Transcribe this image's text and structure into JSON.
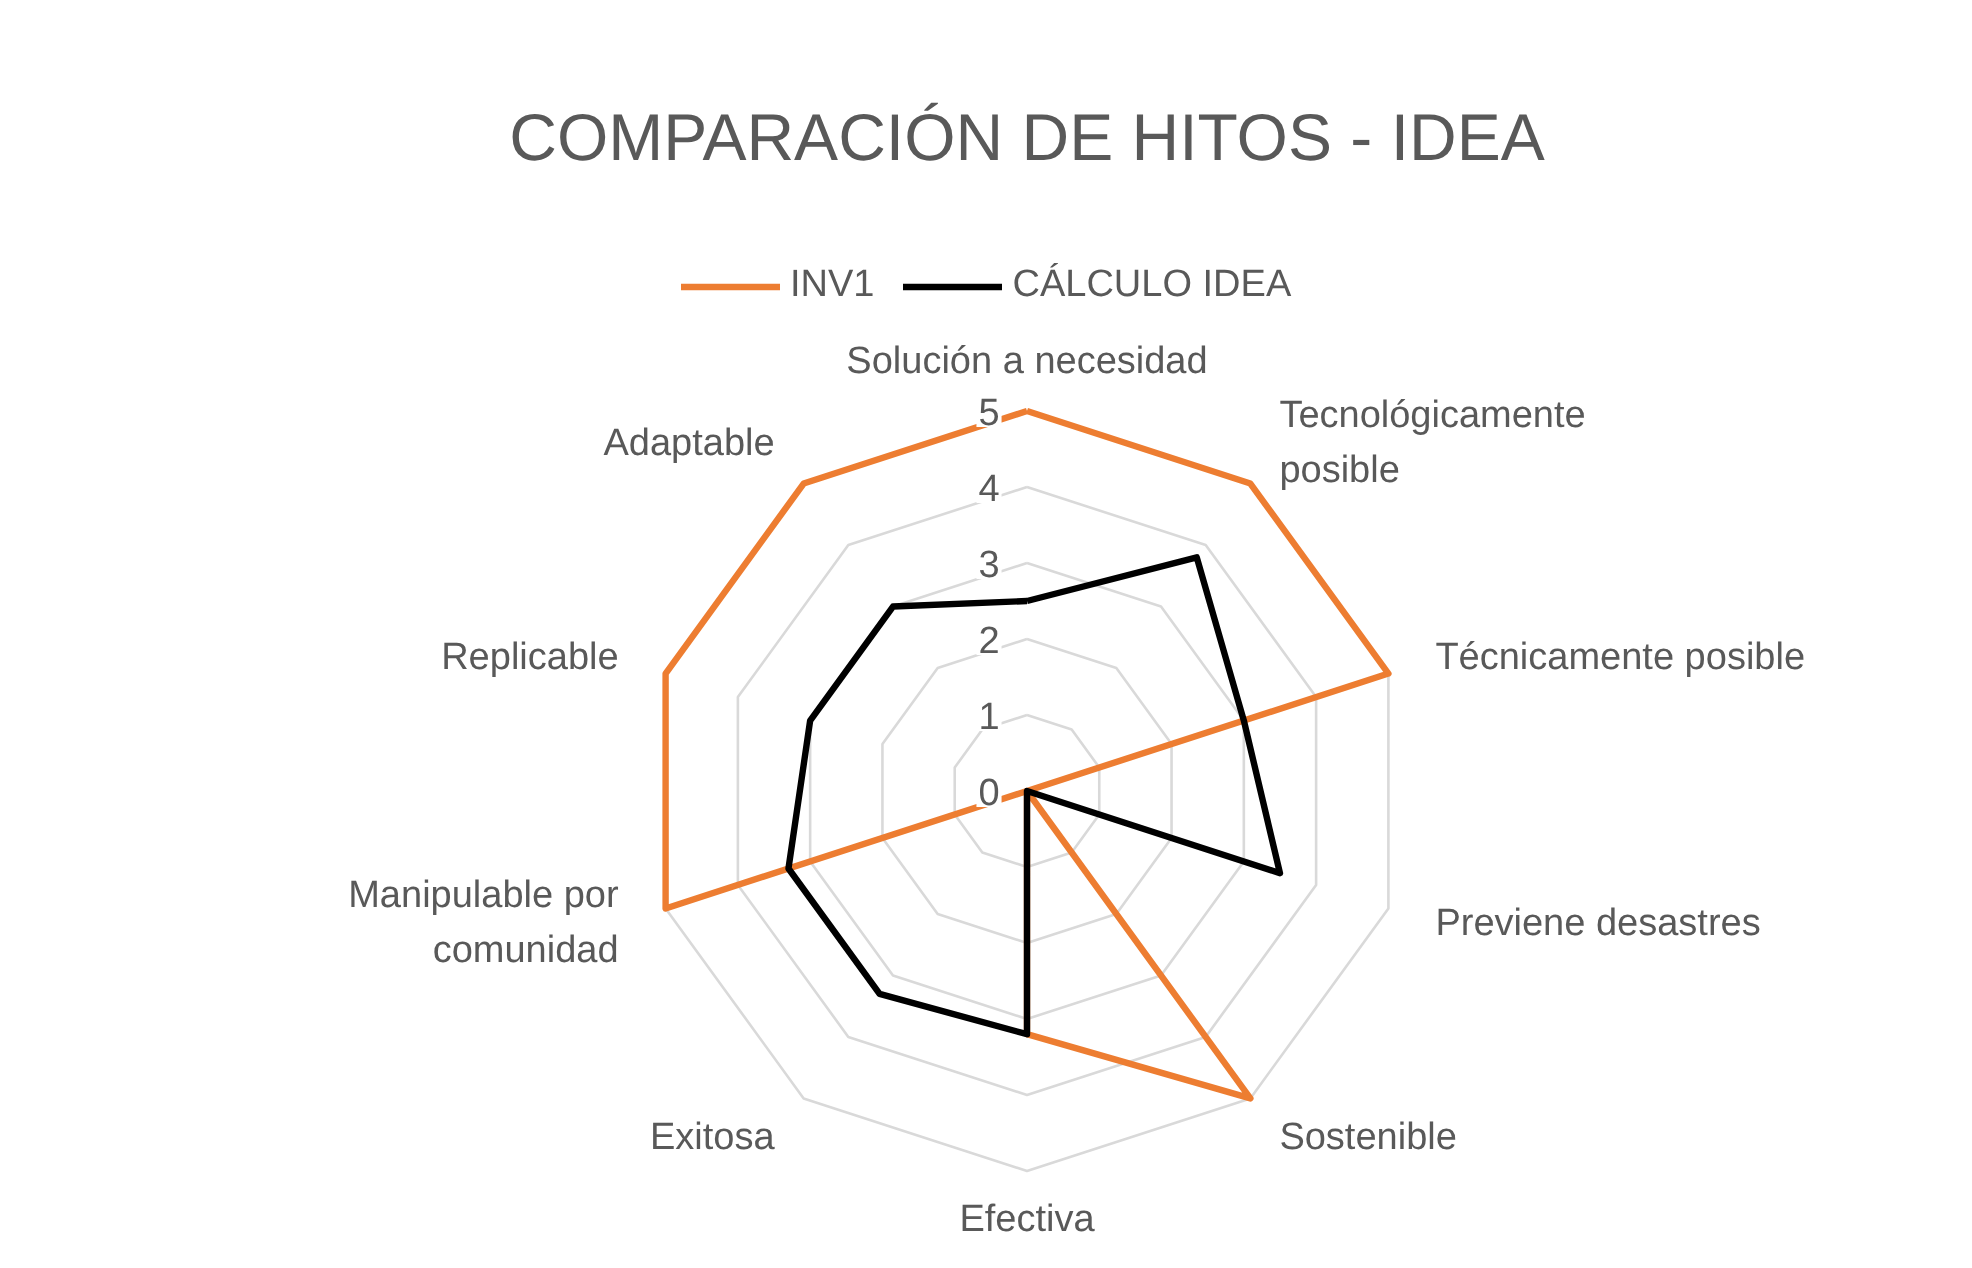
{
  "chart_data": {
    "type": "radar",
    "title": "COMPARACIÓN DE HITOS - IDEA",
    "categories": [
      "Solución a necesidad",
      "Tecnológicamente\nposible",
      "Técnicamente posible",
      "Previene desastres",
      "Sostenible",
      "Efectiva",
      "Exitosa",
      "Manipulable por\ncomunidad",
      "Replicable",
      "Adaptable"
    ],
    "series": [
      {
        "name": "INV1",
        "color": "#ed7d31",
        "values": [
          5,
          5,
          5,
          0,
          5,
          3.2,
          0,
          5,
          5,
          5
        ]
      },
      {
        "name": "CÁLCULO IDEA",
        "color": "#000000",
        "values": [
          2.5,
          3.8,
          3,
          3.5,
          0,
          3.2,
          3.3,
          3.3,
          3,
          3
        ]
      }
    ],
    "ylim": [
      0,
      5
    ],
    "yticks": [
      0,
      1,
      2,
      3,
      4,
      5
    ],
    "grid": true,
    "legend": "top",
    "marker": "none",
    "line_style": "solid"
  }
}
